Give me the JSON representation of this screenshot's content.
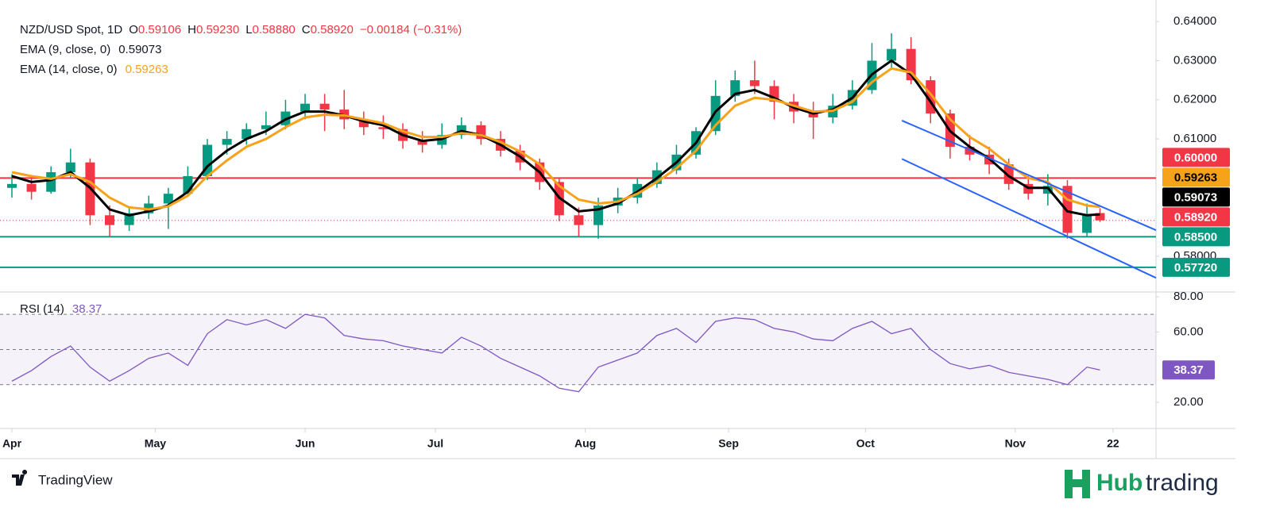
{
  "chart_data": [
    {
      "type": "candlestick",
      "title": "NZD/USD Spot, 1D",
      "ohlc": [
        {
          "key": "O",
          "value": "0.59106"
        },
        {
          "key": "H",
          "value": "0.59230"
        },
        {
          "key": "L",
          "value": "0.58880"
        },
        {
          "key": "C",
          "value": "0.58920"
        }
      ],
      "change": "−0.00184 (−0.31%)",
      "up_color": "#089981",
      "down_color": "#f23645",
      "x": [
        0,
        3,
        6,
        9,
        12,
        15,
        18,
        21,
        24,
        27,
        30,
        33,
        36,
        39,
        42,
        45,
        48,
        51,
        54,
        57,
        60,
        63,
        66,
        69,
        72,
        75,
        78,
        81,
        84,
        87,
        90,
        93,
        96,
        99,
        102,
        105,
        108,
        111,
        114,
        117,
        120,
        123,
        126,
        129,
        132,
        135,
        138,
        141,
        144,
        147,
        150,
        153,
        156,
        159,
        162,
        165,
        167
      ],
      "open": [
        0.5975,
        0.5985,
        0.5965,
        0.6015,
        0.604,
        0.5905,
        0.588,
        0.591,
        0.5935,
        0.596,
        0.6005,
        0.6085,
        0.61,
        0.6125,
        0.6135,
        0.617,
        0.619,
        0.6175,
        0.615,
        0.613,
        0.6125,
        0.6095,
        0.6085,
        0.611,
        0.6135,
        0.61,
        0.607,
        0.604,
        0.599,
        0.5905,
        0.588,
        0.593,
        0.595,
        0.5985,
        0.602,
        0.606,
        0.612,
        0.621,
        0.625,
        0.6235,
        0.6195,
        0.617,
        0.6155,
        0.6185,
        0.6225,
        0.63,
        0.633,
        0.625,
        0.6165,
        0.608,
        0.606,
        0.6035,
        0.5985,
        0.596,
        0.598,
        0.586,
        0.59106
      ],
      "high": [
        0.601,
        0.6,
        0.603,
        0.6075,
        0.605,
        0.593,
        0.5925,
        0.5955,
        0.5975,
        0.603,
        0.61,
        0.612,
        0.614,
        0.617,
        0.62,
        0.6215,
        0.6215,
        0.6225,
        0.617,
        0.616,
        0.614,
        0.612,
        0.614,
        0.6155,
        0.6145,
        0.612,
        0.6085,
        0.605,
        0.6,
        0.5925,
        0.595,
        0.5975,
        0.6,
        0.604,
        0.6085,
        0.613,
        0.625,
        0.6275,
        0.63,
        0.625,
        0.6215,
        0.6195,
        0.6215,
        0.625,
        0.6345,
        0.637,
        0.636,
        0.626,
        0.6175,
        0.611,
        0.608,
        0.605,
        0.6005,
        0.601,
        0.5995,
        0.5935,
        0.5923
      ],
      "low": [
        0.595,
        0.5945,
        0.596,
        0.6,
        0.588,
        0.585,
        0.5865,
        0.5895,
        0.587,
        0.5955,
        0.5995,
        0.606,
        0.6085,
        0.611,
        0.6125,
        0.615,
        0.612,
        0.6125,
        0.611,
        0.61,
        0.6075,
        0.6065,
        0.6075,
        0.61,
        0.6085,
        0.6055,
        0.602,
        0.597,
        0.589,
        0.585,
        0.5845,
        0.591,
        0.5935,
        0.5975,
        0.601,
        0.605,
        0.611,
        0.6195,
        0.6215,
        0.615,
        0.614,
        0.61,
        0.614,
        0.6175,
        0.6215,
        0.628,
        0.624,
        0.614,
        0.605,
        0.6045,
        0.601,
        0.597,
        0.5945,
        0.593,
        0.5845,
        0.585,
        0.5888
      ],
      "close": [
        0.5985,
        0.5965,
        0.6015,
        0.604,
        0.5905,
        0.588,
        0.591,
        0.5935,
        0.596,
        0.6005,
        0.6085,
        0.61,
        0.6125,
        0.6135,
        0.617,
        0.619,
        0.6175,
        0.615,
        0.613,
        0.6125,
        0.6095,
        0.6085,
        0.611,
        0.6135,
        0.61,
        0.607,
        0.604,
        0.599,
        0.5905,
        0.588,
        0.593,
        0.595,
        0.5985,
        0.602,
        0.606,
        0.612,
        0.621,
        0.625,
        0.6235,
        0.6195,
        0.617,
        0.6155,
        0.6185,
        0.6225,
        0.63,
        0.633,
        0.625,
        0.6165,
        0.608,
        0.606,
        0.6035,
        0.5985,
        0.596,
        0.598,
        0.586,
        0.5905,
        0.5892
      ],
      "series": [
        {
          "name": "EMA (9, close, 0)",
          "value_label": "0.59073",
          "color": "#000000",
          "values": [
            0.6005,
            0.599,
            0.5995,
            0.6015,
            0.5975,
            0.592,
            0.5905,
            0.5915,
            0.593,
            0.5965,
            0.603,
            0.607,
            0.61,
            0.612,
            0.615,
            0.617,
            0.617,
            0.616,
            0.6145,
            0.6135,
            0.611,
            0.6095,
            0.61,
            0.612,
            0.611,
            0.6085,
            0.6055,
            0.6015,
            0.595,
            0.5915,
            0.592,
            0.5935,
            0.5965,
            0.6,
            0.604,
            0.609,
            0.617,
            0.6215,
            0.6225,
            0.6205,
            0.618,
            0.6165,
            0.6175,
            0.6205,
            0.6265,
            0.63,
            0.6265,
            0.6195,
            0.612,
            0.608,
            0.605,
            0.6005,
            0.5975,
            0.5975,
            0.5915,
            0.5905,
            0.59073
          ]
        },
        {
          "name": "EMA (14, close, 0)",
          "value_label": "0.59263",
          "color": "#f7a21b",
          "values": [
            0.6015,
            0.6005,
            0.5998,
            0.601,
            0.599,
            0.595,
            0.5925,
            0.592,
            0.5928,
            0.5955,
            0.6005,
            0.6045,
            0.608,
            0.61,
            0.613,
            0.6155,
            0.6162,
            0.616,
            0.615,
            0.614,
            0.612,
            0.6105,
            0.6105,
            0.6115,
            0.611,
            0.6092,
            0.6068,
            0.6035,
            0.598,
            0.5945,
            0.5935,
            0.594,
            0.596,
            0.599,
            0.6025,
            0.607,
            0.6135,
            0.6185,
            0.6205,
            0.62,
            0.6185,
            0.617,
            0.6172,
            0.6195,
            0.6245,
            0.628,
            0.627,
            0.6215,
            0.615,
            0.6105,
            0.6075,
            0.6035,
            0.6,
            0.599,
            0.5945,
            0.593,
            0.59263
          ]
        }
      ],
      "levels": [
        {
          "value": 0.6,
          "color": "#f23645"
        },
        {
          "value": 0.585,
          "color": "#089981"
        },
        {
          "value": 0.5772,
          "color": "#089981"
        }
      ],
      "channels": [
        {
          "color": "#2962ff",
          "x": [
            136.6,
            175.6
          ],
          "values": [
            0.6147,
            0.5867
          ]
        },
        {
          "color": "#2962ff",
          "x": [
            136.6,
            175.6
          ],
          "values": [
            0.6049,
            0.5745
          ]
        }
      ],
      "price_tags": [
        {
          "value": 0.6,
          "label": "0.60000",
          "color": "#f23645"
        },
        {
          "value": 0.59263,
          "label": "0.59263",
          "color": "#f7a21b"
        },
        {
          "value": 0.59073,
          "label": "0.59073",
          "color": "#000000"
        },
        {
          "value": 0.5892,
          "label": "0.58920",
          "color": "#f23645"
        },
        {
          "value": 0.585,
          "label": "0.58500",
          "color": "#089981"
        },
        {
          "value": 0.5772,
          "label": "0.57720",
          "color": "#089981"
        }
      ],
      "xlim": [
        0,
        175.6
      ],
      "ylim": [
        0.5715,
        0.6455
      ],
      "yticks": [
        {
          "value": 0.64,
          "label": "0.64000"
        },
        {
          "value": 0.63,
          "label": "0.63000"
        },
        {
          "value": 0.62,
          "label": "0.62000"
        },
        {
          "value": 0.61,
          "label": "0.61000"
        },
        {
          "value": 0.58,
          "label": "0.58000"
        }
      ],
      "xticks": [
        {
          "value": 0,
          "label": "Apr"
        },
        {
          "value": 22,
          "label": "May"
        },
        {
          "value": 45,
          "label": "Jun"
        },
        {
          "value": 65,
          "label": "Jul"
        },
        {
          "value": 88,
          "label": "Aug"
        },
        {
          "value": 110,
          "label": "Sep"
        },
        {
          "value": 131,
          "label": "Oct"
        },
        {
          "value": 154,
          "label": "Nov"
        },
        {
          "value": 169,
          "label": "22"
        }
      ]
    },
    {
      "type": "line",
      "title": "RSI (14)",
      "value_label": "38.37",
      "color": "#7e57c2",
      "x": [
        0,
        3,
        6,
        9,
        12,
        15,
        18,
        21,
        24,
        27,
        30,
        33,
        36,
        39,
        42,
        45,
        48,
        51,
        54,
        57,
        60,
        63,
        66,
        69,
        72,
        75,
        78,
        81,
        84,
        87,
        90,
        93,
        96,
        99,
        102,
        105,
        108,
        111,
        114,
        117,
        120,
        123,
        126,
        129,
        132,
        135,
        138,
        141,
        144,
        147,
        150,
        153,
        156,
        159,
        162,
        165,
        167
      ],
      "values": [
        32,
        38,
        46,
        52,
        40,
        32,
        38,
        45,
        48,
        41,
        59,
        67,
        64,
        67,
        62,
        70,
        68,
        58,
        56,
        55,
        52,
        50,
        48,
        57,
        52,
        45,
        40,
        35,
        28,
        26,
        40,
        44,
        48,
        58,
        62,
        54,
        66,
        68,
        67,
        62,
        60,
        56,
        55,
        62,
        66,
        59,
        62,
        50,
        42,
        39,
        41,
        37,
        35,
        33,
        30,
        40,
        38.37
      ],
      "bands": [
        30,
        50,
        70
      ],
      "xlim": [
        0,
        175.6
      ],
      "ylim": [
        5.1,
        82.7
      ],
      "yticks": [
        {
          "value": 80,
          "label": "80.00"
        },
        {
          "value": 60,
          "label": "60.00"
        },
        {
          "value": 20,
          "label": "20.00"
        }
      ]
    }
  ],
  "footer": {
    "brand": "TradingView",
    "partner": [
      "Hub",
      "trading"
    ]
  }
}
